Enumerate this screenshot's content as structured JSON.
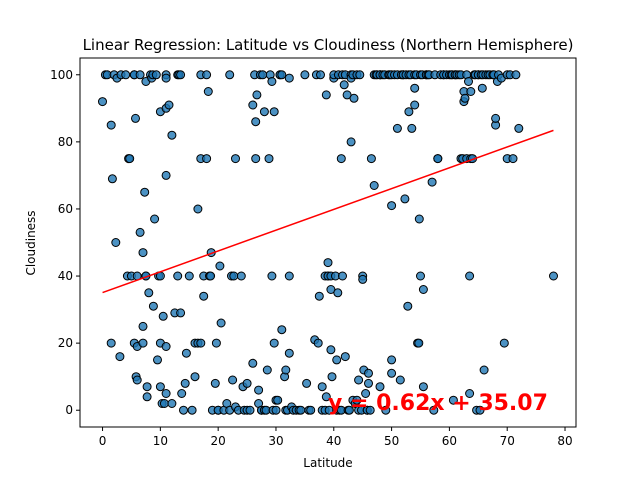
{
  "chart_data": {
    "type": "scatter",
    "title": "Linear Regression: Latitude vs Cloudiness (Northern Hemisphere)",
    "xlabel": "Latitude",
    "ylabel": "Cloudiness",
    "xlim": [
      -3.9,
      81.9
    ],
    "ylim": [
      -5,
      105
    ],
    "xticks": [
      0,
      10,
      20,
      30,
      40,
      50,
      60,
      70,
      80
    ],
    "yticks": [
      0,
      20,
      40,
      60,
      80,
      100
    ],
    "grid": false,
    "colors": {
      "points": "#1f77b4",
      "point_edge": "#000000",
      "regression": "#ff0000"
    },
    "regression": {
      "slope": 0.62,
      "intercept": 35.07,
      "x_range": [
        0,
        78
      ],
      "equation": "y = 0.62x + 35.07"
    },
    "points": [
      [
        0,
        92
      ],
      [
        0.5,
        100
      ],
      [
        0.8,
        100
      ],
      [
        1.5,
        20
      ],
      [
        1.5,
        85
      ],
      [
        1.7,
        69
      ],
      [
        2,
        100
      ],
      [
        2.3,
        50
      ],
      [
        2.5,
        99
      ],
      [
        3,
        16
      ],
      [
        3.2,
        100
      ],
      [
        4,
        100
      ],
      [
        4.3,
        40
      ],
      [
        4.5,
        75
      ],
      [
        4.7,
        75
      ],
      [
        5,
        40
      ],
      [
        5.5,
        100
      ],
      [
        5.5,
        100
      ],
      [
        5.5,
        20
      ],
      [
        5.7,
        87
      ],
      [
        5.8,
        10
      ],
      [
        6,
        9
      ],
      [
        6,
        40
      ],
      [
        6,
        19
      ],
      [
        6.5,
        53
      ],
      [
        6.5,
        100
      ],
      [
        7,
        20
      ],
      [
        7,
        25
      ],
      [
        7,
        47
      ],
      [
        7.3,
        65
      ],
      [
        7.5,
        40
      ],
      [
        7.5,
        40
      ],
      [
        7.5,
        98
      ],
      [
        7.7,
        7
      ],
      [
        7.7,
        4
      ],
      [
        8,
        35
      ],
      [
        8.3,
        100
      ],
      [
        8.5,
        99
      ],
      [
        8.7,
        100
      ],
      [
        8.8,
        31
      ],
      [
        9,
        57
      ],
      [
        9.3,
        100
      ],
      [
        9.5,
        15
      ],
      [
        9.7,
        40
      ],
      [
        10,
        7
      ],
      [
        10,
        20
      ],
      [
        10,
        89
      ],
      [
        10,
        40
      ],
      [
        10.3,
        2
      ],
      [
        10.5,
        28
      ],
      [
        10.7,
        2
      ],
      [
        11,
        100
      ],
      [
        11,
        99
      ],
      [
        11,
        90
      ],
      [
        11,
        70
      ],
      [
        11,
        5
      ],
      [
        11,
        19
      ],
      [
        11.5,
        91
      ],
      [
        12,
        82
      ],
      [
        12,
        2
      ],
      [
        12.5,
        29
      ],
      [
        13,
        40
      ],
      [
        13,
        100
      ],
      [
        13.2,
        100
      ],
      [
        13.5,
        100
      ],
      [
        13.5,
        29
      ],
      [
        13.7,
        5
      ],
      [
        14,
        0
      ],
      [
        14.3,
        8
      ],
      [
        14.5,
        17
      ],
      [
        15,
        40
      ],
      [
        15.5,
        0
      ],
      [
        16,
        10
      ],
      [
        16,
        20
      ],
      [
        16.5,
        60
      ],
      [
        16.5,
        20
      ],
      [
        17,
        100
      ],
      [
        17,
        20
      ],
      [
        17,
        75
      ],
      [
        17.5,
        40
      ],
      [
        17.5,
        34
      ],
      [
        18,
        75
      ],
      [
        18,
        100
      ],
      [
        18.3,
        95
      ],
      [
        18.5,
        40
      ],
      [
        18.7,
        40
      ],
      [
        18.8,
        47
      ],
      [
        19,
        0
      ],
      [
        19.5,
        8
      ],
      [
        19.7,
        20
      ],
      [
        20,
        0
      ],
      [
        20,
        0
      ],
      [
        20.3,
        43
      ],
      [
        20.5,
        26
      ],
      [
        21,
        0
      ],
      [
        21.5,
        2
      ],
      [
        22,
        0
      ],
      [
        22,
        100
      ],
      [
        22.3,
        40
      ],
      [
        22.5,
        9
      ],
      [
        22.7,
        40
      ],
      [
        23,
        75
      ],
      [
        23,
        1
      ],
      [
        23.5,
        0
      ],
      [
        24,
        40
      ],
      [
        24.3,
        7
      ],
      [
        24.5,
        0
      ],
      [
        25,
        0
      ],
      [
        25,
        8
      ],
      [
        25.5,
        0
      ],
      [
        26,
        91
      ],
      [
        26,
        14
      ],
      [
        26.3,
        100
      ],
      [
        26.5,
        86
      ],
      [
        26.5,
        75
      ],
      [
        26.7,
        94
      ],
      [
        27,
        2
      ],
      [
        27,
        6
      ],
      [
        27.3,
        100
      ],
      [
        27.5,
        0
      ],
      [
        27.5,
        0
      ],
      [
        27.7,
        100
      ],
      [
        28,
        89
      ],
      [
        28,
        0
      ],
      [
        28.3,
        0
      ],
      [
        28.5,
        12
      ],
      [
        28.8,
        75
      ],
      [
        29,
        100
      ],
      [
        29.3,
        98
      ],
      [
        29.3,
        40
      ],
      [
        29.5,
        0
      ],
      [
        29.7,
        89
      ],
      [
        29.7,
        20
      ],
      [
        30,
        0
      ],
      [
        30,
        3
      ],
      [
        30.3,
        3
      ],
      [
        30.7,
        100
      ],
      [
        30.7,
        100
      ],
      [
        31,
        100
      ],
      [
        31,
        24
      ],
      [
        31.5,
        10
      ],
      [
        31.7,
        12
      ],
      [
        31.7,
        0
      ],
      [
        32,
        0
      ],
      [
        32.3,
        99
      ],
      [
        32.3,
        17
      ],
      [
        32.3,
        40
      ],
      [
        32.7,
        1
      ],
      [
        33,
        0
      ],
      [
        33.5,
        0
      ],
      [
        34,
        0
      ],
      [
        34.3,
        0
      ],
      [
        35,
        100
      ],
      [
        35.3,
        8
      ],
      [
        35.7,
        0
      ],
      [
        36,
        0
      ],
      [
        36.7,
        21
      ],
      [
        37,
        100
      ],
      [
        37.3,
        20
      ],
      [
        37.5,
        34
      ],
      [
        37.7,
        100
      ],
      [
        38,
        0
      ],
      [
        38,
        7
      ],
      [
        38.5,
        0
      ],
      [
        38.5,
        40
      ],
      [
        38.7,
        94
      ],
      [
        38.7,
        4
      ],
      [
        39,
        44
      ],
      [
        39.2,
        0
      ],
      [
        39,
        40
      ],
      [
        39,
        40
      ],
      [
        39.5,
        40
      ],
      [
        39.5,
        36
      ],
      [
        39.5,
        18
      ],
      [
        39.7,
        10
      ],
      [
        40,
        99
      ],
      [
        40,
        100
      ],
      [
        40.3,
        40
      ],
      [
        40.5,
        0
      ],
      [
        40.5,
        15
      ],
      [
        40.7,
        35
      ],
      [
        40.8,
        100
      ],
      [
        41,
        0
      ],
      [
        41.3,
        0
      ],
      [
        41.3,
        75
      ],
      [
        41.5,
        100
      ],
      [
        41.5,
        40
      ],
      [
        41.8,
        97
      ],
      [
        42,
        100
      ],
      [
        42,
        16
      ],
      [
        42.3,
        94
      ],
      [
        42.5,
        0
      ],
      [
        42.7,
        0
      ],
      [
        43,
        100
      ],
      [
        43,
        99
      ],
      [
        43,
        80
      ],
      [
        43.3,
        100
      ],
      [
        43.3,
        3
      ],
      [
        43.5,
        93
      ],
      [
        43.7,
        2
      ],
      [
        44,
        100
      ],
      [
        44,
        3
      ],
      [
        44.3,
        0
      ],
      [
        44.3,
        9
      ],
      [
        44.5,
        100
      ],
      [
        44.8,
        0
      ],
      [
        45,
        40
      ],
      [
        45,
        39
      ],
      [
        45.2,
        12
      ],
      [
        45.5,
        5
      ],
      [
        45.8,
        0
      ],
      [
        45.8,
        0
      ],
      [
        46,
        11
      ],
      [
        46,
        8
      ],
      [
        46.3,
        0
      ],
      [
        46.5,
        75
      ],
      [
        47,
        100
      ],
      [
        47,
        67
      ],
      [
        47.3,
        100
      ],
      [
        47.5,
        100
      ],
      [
        48,
        7
      ],
      [
        48,
        100
      ],
      [
        48,
        100
      ],
      [
        48.5,
        100
      ],
      [
        48.8,
        100
      ],
      [
        49,
        0
      ],
      [
        49.5,
        100
      ],
      [
        49.7,
        100
      ],
      [
        50,
        100
      ],
      [
        50,
        11
      ],
      [
        50,
        15
      ],
      [
        50,
        61
      ],
      [
        50.5,
        100
      ],
      [
        51,
        100
      ],
      [
        51,
        84
      ],
      [
        51.5,
        9
      ],
      [
        51.7,
        100
      ],
      [
        52,
        100
      ],
      [
        52,
        100
      ],
      [
        52.3,
        63
      ],
      [
        52.5,
        100
      ],
      [
        52.8,
        31
      ],
      [
        53,
        100
      ],
      [
        53,
        89
      ],
      [
        53.3,
        100
      ],
      [
        53.5,
        84
      ],
      [
        54,
        100
      ],
      [
        54,
        96
      ],
      [
        54,
        91
      ],
      [
        54.3,
        100
      ],
      [
        54.5,
        20
      ],
      [
        54.7,
        20
      ],
      [
        54.8,
        57
      ],
      [
        55,
        40
      ],
      [
        55,
        100
      ],
      [
        55.3,
        100
      ],
      [
        55.5,
        36
      ],
      [
        55.5,
        7
      ],
      [
        56,
        100
      ],
      [
        56,
        100
      ],
      [
        56.3,
        100
      ],
      [
        56.5,
        100
      ],
      [
        57,
        68
      ],
      [
        57.3,
        0
      ],
      [
        57.5,
        100
      ],
      [
        58,
        75
      ],
      [
        58,
        75
      ],
      [
        58.5,
        100
      ],
      [
        59,
        100
      ],
      [
        59,
        100
      ],
      [
        59.5,
        100
      ],
      [
        60,
        100
      ],
      [
        60.3,
        100
      ],
      [
        60.5,
        100
      ],
      [
        60.7,
        3
      ],
      [
        61,
        100
      ],
      [
        61,
        100
      ],
      [
        61.3,
        100
      ],
      [
        61.7,
        100
      ],
      [
        62,
        100
      ],
      [
        62,
        75
      ],
      [
        62.3,
        75
      ],
      [
        62.5,
        92
      ],
      [
        62.5,
        95
      ],
      [
        62.7,
        93
      ],
      [
        63,
        75
      ],
      [
        63,
        100
      ],
      [
        63.3,
        98
      ],
      [
        63.5,
        40
      ],
      [
        63.5,
        5
      ],
      [
        63.7,
        75
      ],
      [
        63.7,
        95
      ],
      [
        64,
        75
      ],
      [
        64.3,
        100
      ],
      [
        64.5,
        100
      ],
      [
        64.7,
        0
      ],
      [
        65,
        100
      ],
      [
        65,
        100
      ],
      [
        65.3,
        0
      ],
      [
        65.5,
        100
      ],
      [
        65.7,
        96
      ],
      [
        65.8,
        100
      ],
      [
        66,
        12
      ],
      [
        66.3,
        100
      ],
      [
        66.7,
        100
      ],
      [
        67,
        100
      ],
      [
        67.5,
        100
      ],
      [
        67.7,
        100
      ],
      [
        68,
        85
      ],
      [
        68,
        87
      ],
      [
        68.3,
        98
      ],
      [
        68.5,
        100
      ],
      [
        69,
        99
      ],
      [
        69.5,
        20
      ],
      [
        70,
        75
      ],
      [
        70,
        100
      ],
      [
        70.5,
        100
      ],
      [
        71,
        75
      ],
      [
        71.5,
        100
      ],
      [
        72,
        84
      ],
      [
        78,
        40
      ]
    ]
  }
}
